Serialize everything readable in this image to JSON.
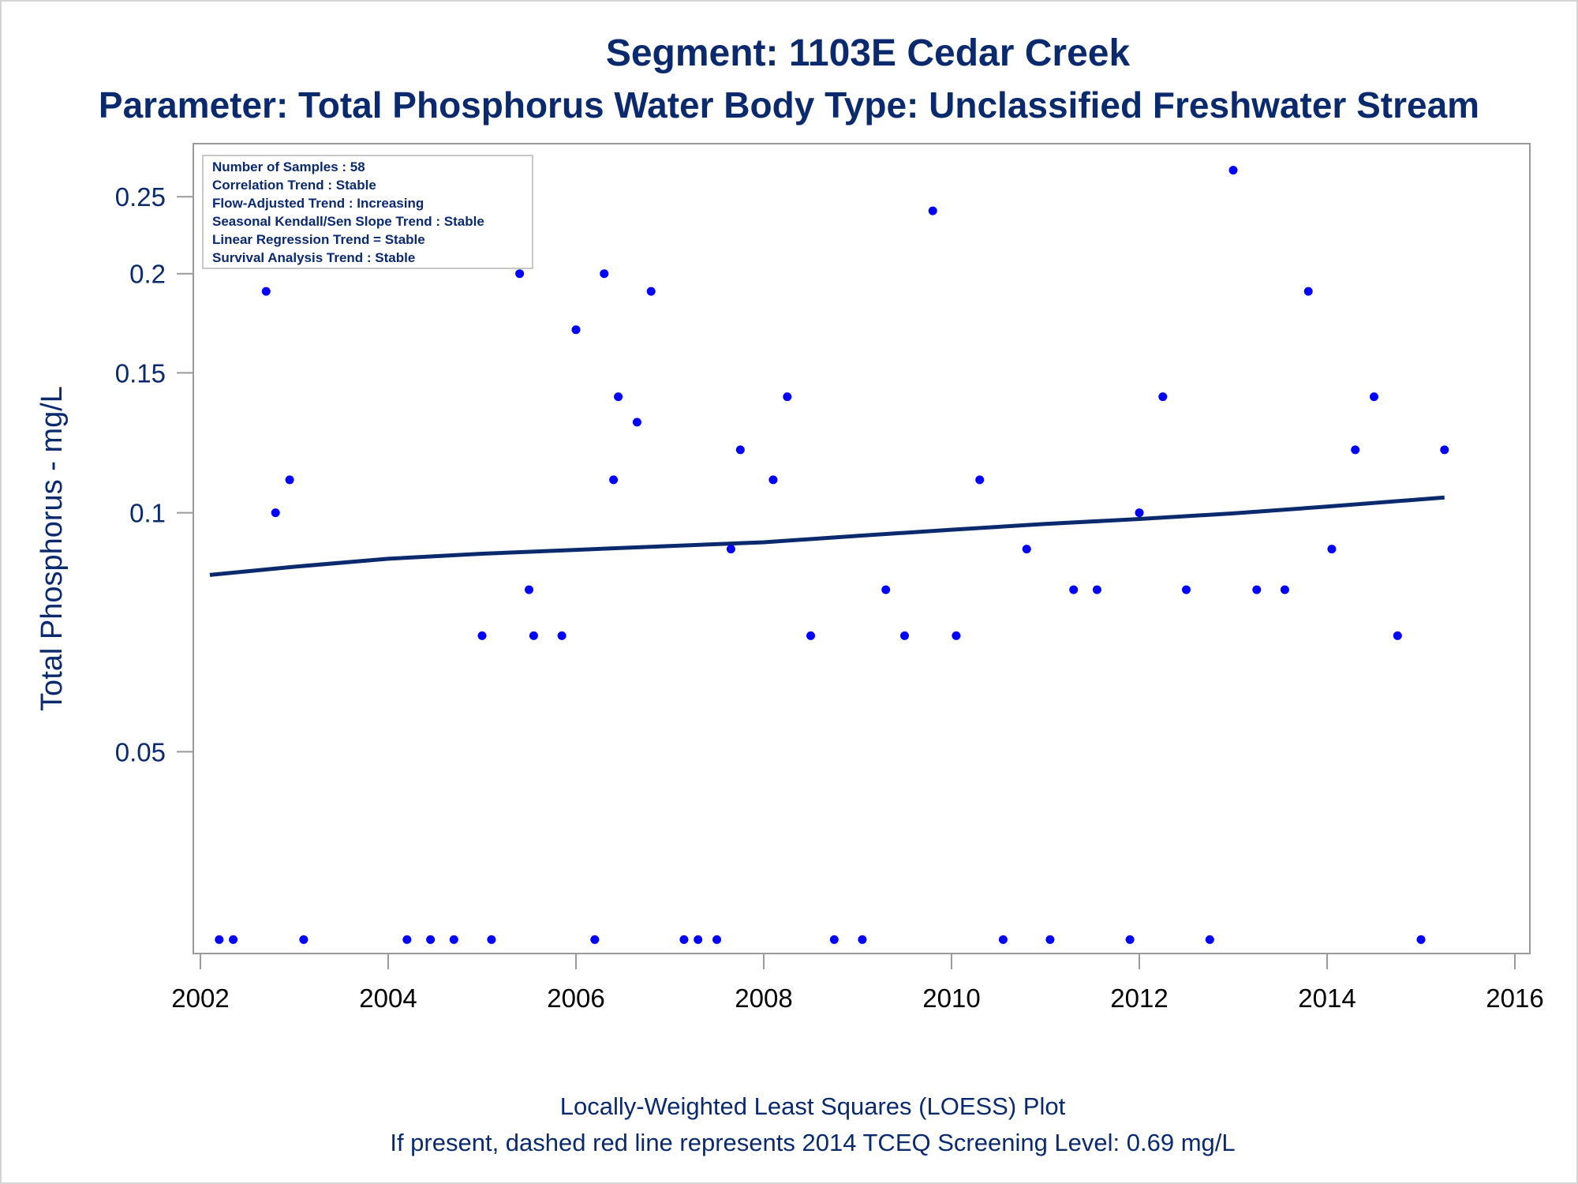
{
  "header": {
    "title": "Segment: 1103E  Cedar Creek",
    "subtitle": "Parameter: Total Phosphorus   Water Body Type: Unclassified Freshwater Stream"
  },
  "footer": {
    "line1": "Locally-Weighted Least Squares (LOESS) Plot",
    "line2": "If present, dashed red line represents 2014 TCEQ Screening Level: 0.69 mg/L"
  },
  "colors": {
    "text": "#0b2a6e",
    "points": "#0000ff",
    "trend": "#0b2a6e",
    "axis": "#9a9a9a"
  },
  "chart_data": {
    "type": "scatter",
    "title": "Segment: 1103E  Cedar Creek",
    "subtitle": "Parameter: Total Phosphorus   Water Body Type: Unclassified Freshwater Stream",
    "xlabel": "",
    "ylabel": "Total Phosphorus - mg/L",
    "y_scale": "log",
    "xlim": [
      2002,
      2016
    ],
    "ylim": [
      0.0285,
      0.285
    ],
    "x_ticks": [
      2002,
      2004,
      2006,
      2008,
      2010,
      2012,
      2014,
      2016
    ],
    "y_ticks": [
      0.05,
      0.1,
      0.15,
      0.2,
      0.25
    ],
    "y_tick_labels": [
      "0.05",
      "0.1",
      "0.15",
      "0.2",
      "0.25"
    ],
    "grid": false,
    "legend_location": "top-left",
    "stats_box": [
      "Number of Samples : 58",
      "Correlation Trend : Stable",
      "Flow-Adjusted Trend : Increasing",
      "Seasonal Kendall/Sen Slope Trend : Stable",
      "Linear Regression Trend = Stable",
      "Survival Analysis Trend : Stable"
    ],
    "series": [
      {
        "kind": "points",
        "points": [
          [
            2002.2,
            0.029
          ],
          [
            2002.35,
            0.029
          ],
          [
            2002.7,
            0.19
          ],
          [
            2002.8,
            0.1
          ],
          [
            2002.95,
            0.11
          ],
          [
            2003.1,
            0.029
          ],
          [
            2004.2,
            0.029
          ],
          [
            2004.45,
            0.029
          ],
          [
            2004.7,
            0.029
          ],
          [
            2005.0,
            0.07
          ],
          [
            2005.1,
            0.029
          ],
          [
            2005.25,
            0.22
          ],
          [
            2005.4,
            0.2
          ],
          [
            2005.5,
            0.08
          ],
          [
            2005.55,
            0.07
          ],
          [
            2005.85,
            0.07
          ],
          [
            2006.0,
            0.17
          ],
          [
            2006.2,
            0.029
          ],
          [
            2006.3,
            0.2
          ],
          [
            2006.4,
            0.11
          ],
          [
            2006.45,
            0.14
          ],
          [
            2006.65,
            0.13
          ],
          [
            2006.8,
            0.19
          ],
          [
            2007.15,
            0.029
          ],
          [
            2007.3,
            0.029
          ],
          [
            2007.5,
            0.029
          ],
          [
            2007.65,
            0.09
          ],
          [
            2007.75,
            0.12
          ],
          [
            2008.1,
            0.11
          ],
          [
            2008.25,
            0.14
          ],
          [
            2008.5,
            0.07
          ],
          [
            2008.75,
            0.029
          ],
          [
            2009.05,
            0.029
          ],
          [
            2009.3,
            0.08
          ],
          [
            2009.5,
            0.07
          ],
          [
            2009.8,
            0.24
          ],
          [
            2010.05,
            0.07
          ],
          [
            2010.3,
            0.11
          ],
          [
            2010.55,
            0.029
          ],
          [
            2010.8,
            0.09
          ],
          [
            2011.05,
            0.029
          ],
          [
            2011.3,
            0.08
          ],
          [
            2011.55,
            0.08
          ],
          [
            2011.9,
            0.029
          ],
          [
            2012.0,
            0.1
          ],
          [
            2012.25,
            0.14
          ],
          [
            2012.5,
            0.08
          ],
          [
            2012.75,
            0.029
          ],
          [
            2013.0,
            0.27
          ],
          [
            2013.25,
            0.08
          ],
          [
            2013.55,
            0.08
          ],
          [
            2013.8,
            0.19
          ],
          [
            2014.05,
            0.09
          ],
          [
            2014.3,
            0.12
          ],
          [
            2014.5,
            0.14
          ],
          [
            2014.75,
            0.07
          ],
          [
            2015.0,
            0.029
          ],
          [
            2015.25,
            0.12
          ]
        ]
      },
      {
        "kind": "loess-line",
        "points": [
          [
            2002.1,
            0.0835
          ],
          [
            2003.0,
            0.0855
          ],
          [
            2004.0,
            0.0875
          ],
          [
            2005.0,
            0.0888
          ],
          [
            2006.0,
            0.0898
          ],
          [
            2007.0,
            0.0908
          ],
          [
            2008.0,
            0.0918
          ],
          [
            2009.0,
            0.0935
          ],
          [
            2010.0,
            0.0952
          ],
          [
            2011.0,
            0.0968
          ],
          [
            2012.0,
            0.0982
          ],
          [
            2013.0,
            0.0998
          ],
          [
            2014.0,
            0.1018
          ],
          [
            2015.25,
            0.1045
          ]
        ]
      }
    ]
  }
}
